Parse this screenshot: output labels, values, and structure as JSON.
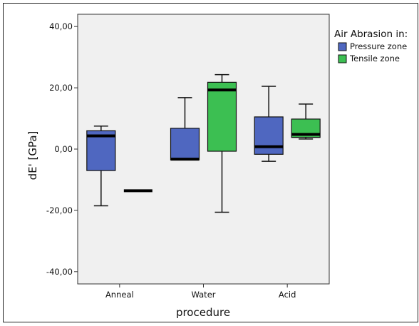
{
  "chart_data": {
    "type": "boxplot",
    "xlabel": "procedure",
    "ylabel": "dE' [GPa]",
    "ylim": [
      -44,
      44
    ],
    "yticks": [
      -40,
      -20,
      0,
      20,
      40
    ],
    "ytick_labels": [
      "-40,00",
      "-20,00",
      "0,00",
      "20,00",
      "40,00"
    ],
    "categories": [
      "Anneal",
      "Water",
      "Acid"
    ],
    "legend": {
      "title": "Air Abrasion in:",
      "position": "right",
      "entries": [
        {
          "name": "Pressure zone",
          "color": "#4f67c0"
        },
        {
          "name": "Tensile zone",
          "color": "#3cbf52"
        }
      ]
    },
    "grid": false,
    "background": "#f0f0f0",
    "boxes": [
      {
        "category": "Anneal",
        "series": "Pressure zone",
        "min": -18.5,
        "q1": -7,
        "median": 4.3,
        "q3": 6,
        "max": 7.5
      },
      {
        "category": "Anneal",
        "series": "Tensile zone",
        "min": -13.6,
        "q1": -13.6,
        "median": -13.6,
        "q3": -13.6,
        "max": -13.6
      },
      {
        "category": "Water",
        "series": "Pressure zone",
        "min": -3.5,
        "q1": -3.5,
        "median": -3.3,
        "q3": 6.8,
        "max": 16.8
      },
      {
        "category": "Water",
        "series": "Tensile zone",
        "min": -20.6,
        "q1": -0.7,
        "median": 19.3,
        "q3": 21.8,
        "max": 24.3
      },
      {
        "category": "Acid",
        "series": "Pressure zone",
        "min": -4,
        "q1": -1.7,
        "median": 0.8,
        "q3": 10.5,
        "max": 20.5
      },
      {
        "category": "Acid",
        "series": "Tensile zone",
        "min": 3.3,
        "q1": 3.8,
        "median": 4.8,
        "q3": 9.8,
        "max": 14.7
      }
    ]
  }
}
